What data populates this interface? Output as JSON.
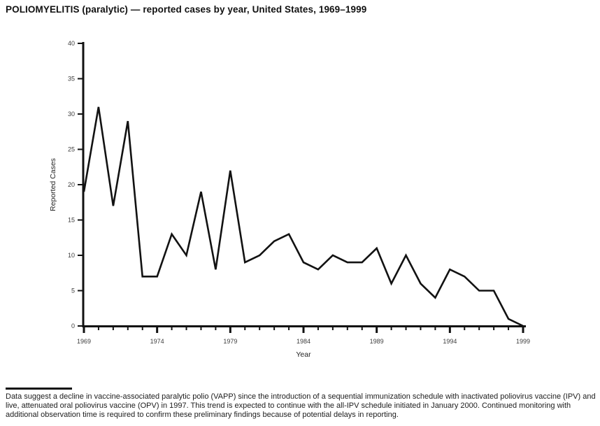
{
  "chart_data": {
    "type": "line",
    "title": "POLIOMYELITIS (paralytic) — reported cases by year, United States, 1969–1999",
    "xlabel": "Year",
    "ylabel": "Reported Cases",
    "x": [
      1969,
      1970,
      1971,
      1972,
      1973,
      1974,
      1975,
      1976,
      1977,
      1978,
      1979,
      1980,
      1981,
      1982,
      1983,
      1984,
      1985,
      1986,
      1987,
      1988,
      1989,
      1990,
      1991,
      1992,
      1993,
      1994,
      1995,
      1996,
      1997,
      1998,
      1999
    ],
    "values": [
      19,
      31,
      17,
      29,
      7,
      7,
      13,
      10,
      19,
      8,
      22,
      9,
      10,
      12,
      13,
      9,
      8,
      10,
      9,
      9,
      11,
      6,
      10,
      6,
      4,
      8,
      7,
      5,
      5,
      1,
      0
    ],
    "ylim": [
      0,
      40
    ],
    "ytick_interval": 5,
    "ytick_labels": [
      "0",
      "5",
      "10",
      "15",
      "20",
      "25",
      "30",
      "35",
      "40"
    ],
    "xtick_major": [
      1969,
      1974,
      1979,
      1984,
      1989,
      1994,
      1999
    ],
    "xtick_major_labels": [
      "1969",
      "1974",
      "1979",
      "1984",
      "1989",
      "1994",
      "1999"
    ],
    "grid": "off",
    "legend": "none",
    "line_color": "#121212",
    "axis_color": "#111111",
    "tick_label_color": "#3d3d3d"
  },
  "footer": {
    "note": "Data suggest a decline in vaccine-associated paralytic polio (VAPP) since the introduction of a sequential immunization schedule with inactivated poliovirus vaccine (IPV) and live, attenuated oral poliovirus vaccine (OPV) in 1997. This trend is expected to continue with the all-IPV schedule initiated in January 2000. Continued monitoring with additional observation time is required to confirm these preliminary findings because of potential delays in reporting."
  }
}
